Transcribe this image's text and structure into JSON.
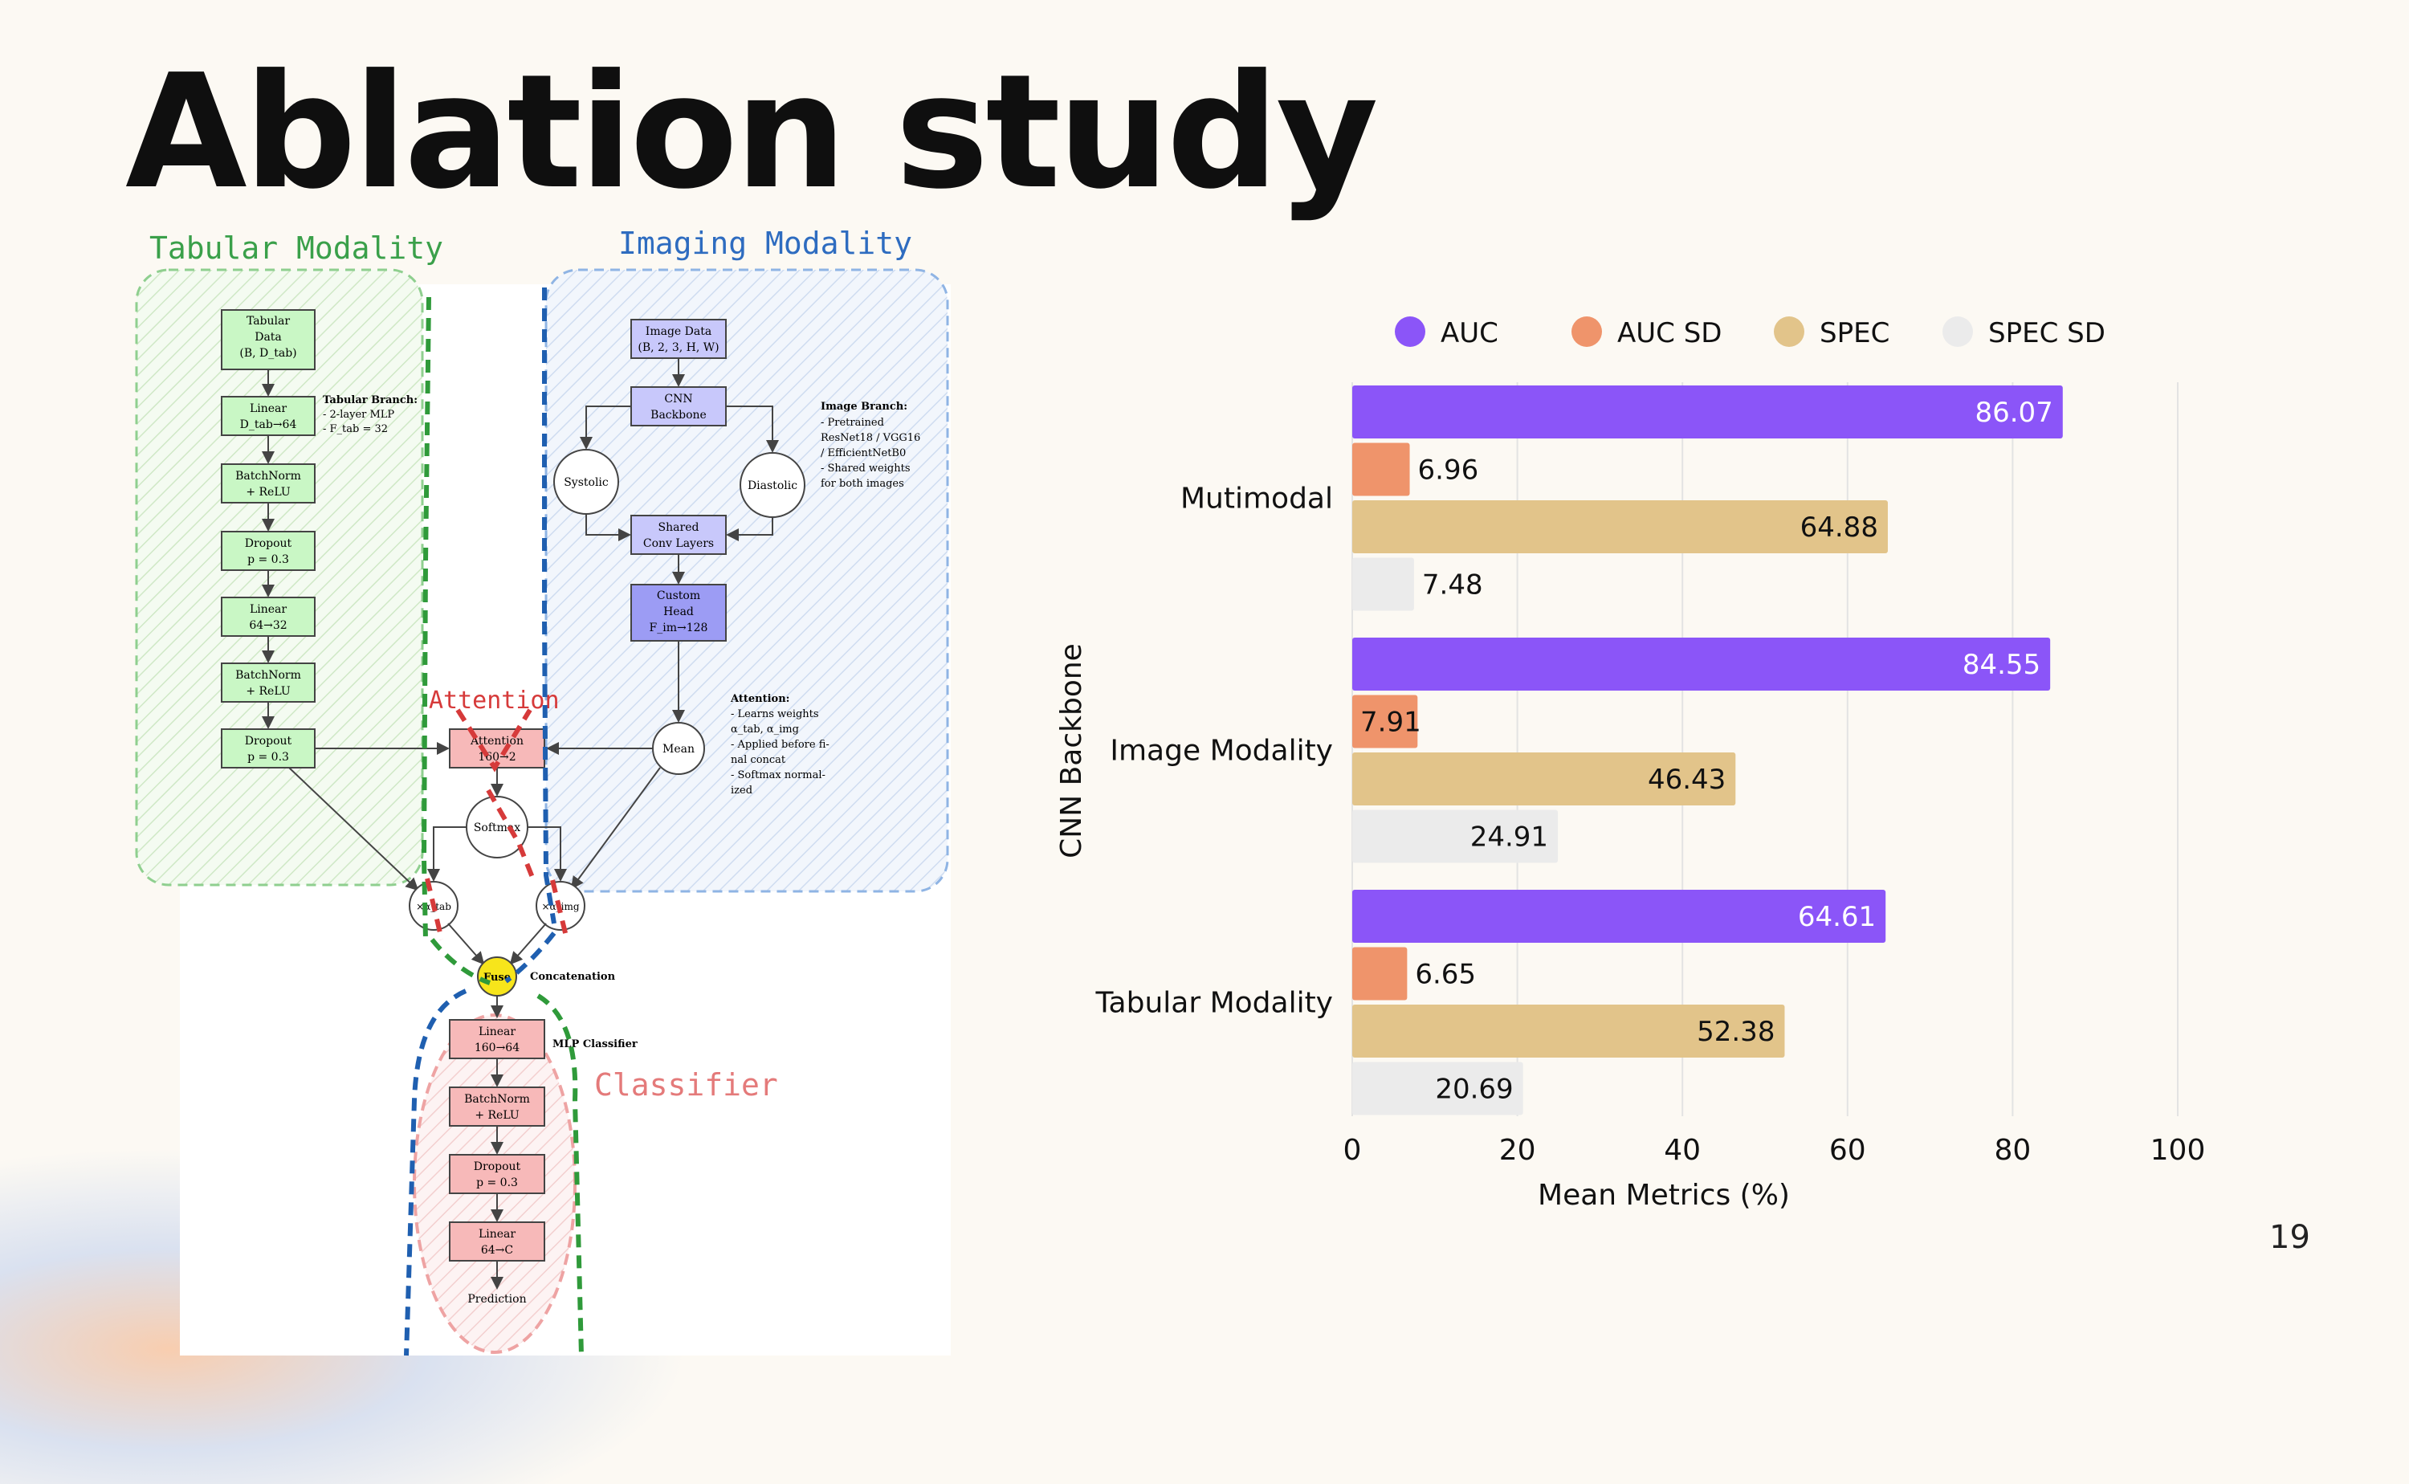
{
  "slide": {
    "title": "Ablation study",
    "page_number": "19"
  },
  "diagram": {
    "region_labels": {
      "tabular": "Tabular Modality",
      "imaging": "Imaging Modality",
      "attention": "Attention",
      "classifier": "Classifier"
    },
    "tabular_nodes": [
      [
        "Tabular",
        "Data",
        "(B, D_tab)"
      ],
      [
        "Linear",
        "D_tab→64"
      ],
      [
        "BatchNorm",
        "+ ReLU"
      ],
      [
        "Dropout",
        "p = 0.3"
      ],
      [
        "Linear",
        "64→32"
      ],
      [
        "BatchNorm",
        "+ ReLU"
      ],
      [
        "Dropout",
        "p = 0.3"
      ]
    ],
    "tabular_note": [
      "Tabular Branch:",
      "- 2-layer MLP",
      "- F_tab = 32"
    ],
    "image_nodes": {
      "image_data": [
        "Image Data",
        "(B, 2, 3, H, W)"
      ],
      "cnn": [
        "CNN",
        "Backbone"
      ],
      "systolic": "Systolic",
      "diastolic": "Diastolic",
      "shared": [
        "Shared",
        "Conv Layers"
      ],
      "head": [
        "Custom",
        "Head",
        "F_im→128"
      ],
      "mean": "Mean"
    },
    "image_note": [
      "Image Branch:",
      "- Pretrained",
      "ResNet18 / VGG16",
      "/ EfficientNetB0",
      "- Shared weights",
      "for both images"
    ],
    "attention_node": [
      "Attention",
      "160→2"
    ],
    "softmax": "Softmax",
    "mult_tab": "×α_tab",
    "mult_img": "×α_img",
    "attention_note": [
      "Attention:",
      "- Learns weights",
      "α_tab, α_img",
      "- Applied before fi-",
      "nal concat",
      "- Softmax normal-",
      "ized"
    ],
    "fuse": "Fuse",
    "concat_label": "Concatenation",
    "mlp_label": "MLP Classifier",
    "classifier_nodes": [
      [
        "Linear",
        "160→64"
      ],
      [
        "BatchNorm",
        "+ ReLU"
      ],
      [
        "Dropout",
        "p = 0.3"
      ],
      [
        "Linear",
        "64→C"
      ]
    ],
    "prediction": "Prediction"
  },
  "chart_data": {
    "type": "bar",
    "orientation": "horizontal",
    "categories": [
      "Mutimodal",
      "Image Modality",
      "Tabular Modality"
    ],
    "series": [
      {
        "name": "AUC",
        "color": "#8b55f8",
        "values": [
          86.07,
          84.55,
          64.61
        ]
      },
      {
        "name": "AUC SD",
        "color": "#ef946b",
        "values": [
          6.96,
          7.91,
          6.65
        ]
      },
      {
        "name": "SPEC",
        "color": "#e2c48a",
        "values": [
          64.88,
          46.43,
          52.38
        ]
      },
      {
        "name": "SPEC SD",
        "color": "#ebebeb",
        "values": [
          7.48,
          24.91,
          20.69
        ]
      }
    ],
    "data_labels": [
      [
        "86.07",
        "6.96",
        "64.88",
        "7.48"
      ],
      [
        "84.55",
        "7.91",
        "46.43",
        "24.91"
      ],
      [
        "64.61",
        "6.65",
        "52.38",
        "20.69"
      ]
    ],
    "xlabel": "Mean Metrics (%)",
    "ylabel": "CNN Backbone",
    "xlim": [
      0,
      100
    ],
    "xticks": [
      "0",
      "20",
      "40",
      "60",
      "80",
      "100"
    ],
    "grid": "vertical",
    "legend_position": "top"
  }
}
